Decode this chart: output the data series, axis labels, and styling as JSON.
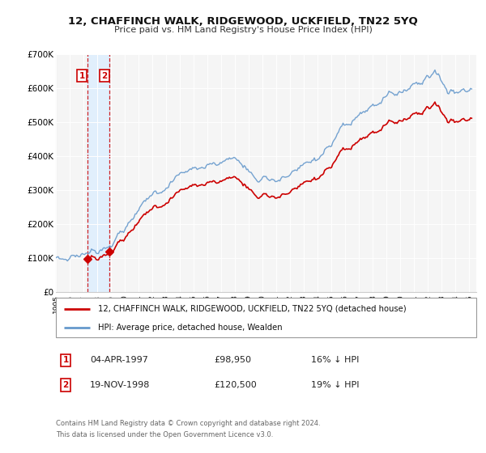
{
  "title": "12, CHAFFINCH WALK, RIDGEWOOD, UCKFIELD, TN22 5YQ",
  "subtitle": "Price paid vs. HM Land Registry's House Price Index (HPI)",
  "legend_label_red": "12, CHAFFINCH WALK, RIDGEWOOD, UCKFIELD, TN22 5YQ (detached house)",
  "legend_label_blue": "HPI: Average price, detached house, Wealden",
  "transaction1_label": "04-APR-1997",
  "transaction1_price": "£98,950",
  "transaction1_hpi": "16% ↓ HPI",
  "transaction1_date_num": 1997.27,
  "transaction1_value": 98950,
  "transaction2_label": "19-NOV-1998",
  "transaction2_price": "£120,500",
  "transaction2_hpi": "19% ↓ HPI",
  "transaction2_date_num": 1998.88,
  "transaction2_value": 120500,
  "footer1": "Contains HM Land Registry data © Crown copyright and database right 2024.",
  "footer2": "This data is licensed under the Open Government Licence v3.0.",
  "ylim": [
    0,
    700000
  ],
  "xlim": [
    1995.0,
    2025.5
  ],
  "yticks": [
    0,
    100000,
    200000,
    300000,
    400000,
    500000,
    600000,
    700000
  ],
  "ytick_labels": [
    "£0",
    "£100K",
    "£200K",
    "£300K",
    "£400K",
    "£500K",
    "£600K",
    "£700K"
  ],
  "xticks": [
    1995,
    1996,
    1997,
    1998,
    1999,
    2000,
    2001,
    2002,
    2003,
    2004,
    2005,
    2006,
    2007,
    2008,
    2009,
    2010,
    2011,
    2012,
    2013,
    2014,
    2015,
    2016,
    2017,
    2018,
    2019,
    2020,
    2021,
    2022,
    2023,
    2024,
    2025
  ],
  "red_color": "#cc0000",
  "blue_color": "#6699cc",
  "shade_color": "#ddeeff",
  "background_plot": "#f5f5f5"
}
